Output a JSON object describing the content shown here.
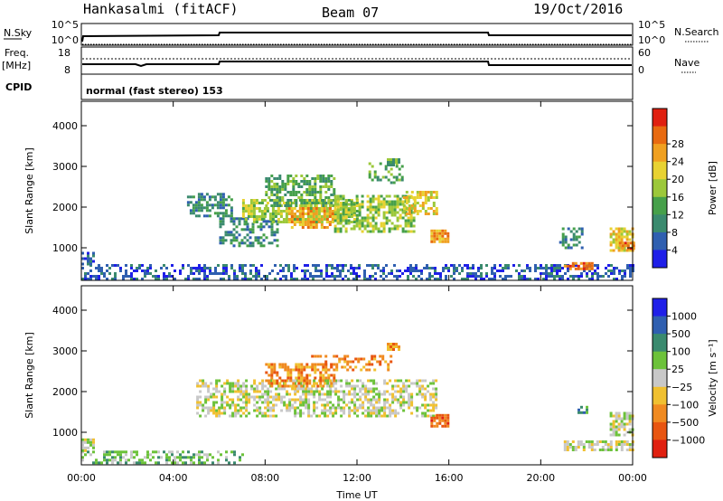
{
  "header": {
    "station": "Hankasalmi (fitACF)",
    "beam": "Beam 07",
    "date": "19/Oct/2016"
  },
  "strips": {
    "nsky_label": "N.Sky",
    "nsearch_label": "N.Search",
    "nsky_ticks": [
      "10^5",
      "10^0"
    ],
    "nsearch_ticks": [
      "10^5",
      "10^0"
    ],
    "freq_label": "Freq.",
    "freq_unit": "[MHz]",
    "freq_ticks": [
      "18",
      "8"
    ],
    "nave_label": "Nave",
    "nave_ticks": [
      "60",
      "0"
    ],
    "cpid_label": "CPID",
    "cpid_text": "normal (fast stereo) 153"
  },
  "chart_data": [
    {
      "type": "heatmap",
      "name": "power",
      "ylabel": "Slant Range [km]",
      "yticks": [
        1000,
        2000,
        3000,
        4000
      ],
      "ylim": [
        200,
        4600
      ],
      "xlabel": "",
      "xticks": [
        "00:00",
        "04:00",
        "08:00",
        "12:00",
        "16:00",
        "20:00",
        "00:00"
      ],
      "xlim_hours": [
        0,
        24
      ],
      "colorbar": {
        "label": "Power [dB]",
        "ticks": [
          "4",
          "8",
          "12",
          "16",
          "20",
          "24",
          "28"
        ],
        "colors": [
          "#1f1fe8",
          "#2f5fb0",
          "#3a8a6e",
          "#46a04a",
          "#9cc83a",
          "#e8d232",
          "#f0a020",
          "#e86a10",
          "#e02010"
        ]
      },
      "regions": [
        {
          "t0": 0.0,
          "t1": 24.0,
          "r0": 250,
          "r1": 600,
          "level": 1,
          "density": 0.45
        },
        {
          "t0": 0.0,
          "t1": 0.5,
          "r0": 600,
          "r1": 900,
          "level": 1,
          "density": 0.7
        },
        {
          "t0": 4.6,
          "t1": 6.6,
          "r0": 1750,
          "r1": 2350,
          "level": 2,
          "density": 0.55
        },
        {
          "t0": 6.0,
          "t1": 8.5,
          "r0": 1050,
          "r1": 1750,
          "level": 2,
          "density": 0.5
        },
        {
          "t0": 7.0,
          "t1": 12.0,
          "r0": 1600,
          "r1": 2200,
          "level": 4,
          "density": 0.7
        },
        {
          "t0": 8.0,
          "t1": 11.0,
          "r0": 2000,
          "r1": 2800,
          "level": 3,
          "density": 0.6
        },
        {
          "t0": 9.0,
          "t1": 11.0,
          "r0": 1500,
          "r1": 2000,
          "level": 6,
          "density": 0.6
        },
        {
          "t0": 11.0,
          "t1": 14.5,
          "r0": 1400,
          "r1": 2300,
          "level": 4,
          "density": 0.6
        },
        {
          "t0": 12.5,
          "t1": 14.0,
          "r0": 2600,
          "r1": 3100,
          "level": 3,
          "density": 0.4
        },
        {
          "t0": 14.0,
          "t1": 15.5,
          "r0": 1800,
          "r1": 2400,
          "level": 5,
          "density": 0.6
        },
        {
          "t0": 15.2,
          "t1": 16.0,
          "r0": 1150,
          "r1": 1450,
          "level": 6,
          "density": 0.9
        },
        {
          "t0": 21.0,
          "t1": 22.2,
          "r0": 450,
          "r1": 650,
          "level": 7,
          "density": 0.85
        },
        {
          "t0": 20.8,
          "t1": 21.8,
          "r0": 1000,
          "r1": 1500,
          "level": 2,
          "density": 0.5
        },
        {
          "t0": 23.0,
          "t1": 24.0,
          "r0": 900,
          "r1": 1500,
          "level": 5,
          "density": 0.75
        },
        {
          "t0": 23.4,
          "t1": 24.0,
          "r0": 950,
          "r1": 1150,
          "level": 7,
          "density": 0.9
        },
        {
          "t0": 13.3,
          "t1": 13.8,
          "r0": 3050,
          "r1": 3200,
          "level": 3,
          "density": 0.9
        }
      ]
    },
    {
      "type": "heatmap",
      "name": "velocity",
      "ylabel": "Slant Range [km]",
      "yticks": [
        1000,
        2000,
        3000,
        4000
      ],
      "ylim": [
        200,
        4600
      ],
      "xlabel": "Time UT",
      "xticks": [
        "00:00",
        "04:00",
        "08:00",
        "12:00",
        "16:00",
        "20:00",
        "00:00"
      ],
      "xlim_hours": [
        0,
        24
      ],
      "colorbar": {
        "label": "Velocity [m s⁻¹]",
        "ticks": [
          "1000",
          "500",
          "100",
          "25",
          "−25",
          "−100",
          "−500",
          "−1000"
        ],
        "colors": [
          "#1f1fe8",
          "#2f5fb0",
          "#3a8a6e",
          "#6cc23a",
          "#c8c8c8",
          "#f0c030",
          "#f08a20",
          "#e85510",
          "#e02010"
        ]
      },
      "regions": [
        {
          "t0": 0.0,
          "t1": 7.0,
          "r0": 250,
          "r1": 550,
          "level": 3,
          "density": 0.45
        },
        {
          "t0": 0.0,
          "t1": 0.5,
          "r0": 550,
          "r1": 850,
          "level": 4,
          "density": 0.7
        },
        {
          "t0": 5.0,
          "t1": 15.5,
          "r0": 1400,
          "r1": 2300,
          "level": 4,
          "density": 0.55
        },
        {
          "t0": 8.0,
          "t1": 11.0,
          "r0": 2100,
          "r1": 2700,
          "level": 6,
          "density": 0.6
        },
        {
          "t0": 10.0,
          "t1": 13.5,
          "r0": 2550,
          "r1": 2900,
          "level": 6,
          "density": 0.4
        },
        {
          "t0": 15.2,
          "t1": 16.0,
          "r0": 1150,
          "r1": 1450,
          "level": 7,
          "density": 0.9
        },
        {
          "t0": 21.0,
          "t1": 24.0,
          "r0": 550,
          "r1": 800,
          "level": 4,
          "density": 0.65
        },
        {
          "t0": 23.0,
          "t1": 24.0,
          "r0": 900,
          "r1": 1500,
          "level": 4,
          "density": 0.7
        },
        {
          "t0": 13.3,
          "t1": 13.8,
          "r0": 3050,
          "r1": 3200,
          "level": 6,
          "density": 0.9
        },
        {
          "t0": 21.6,
          "t1": 22.0,
          "r0": 1450,
          "r1": 1650,
          "level": 2,
          "density": 0.6
        }
      ]
    }
  ]
}
